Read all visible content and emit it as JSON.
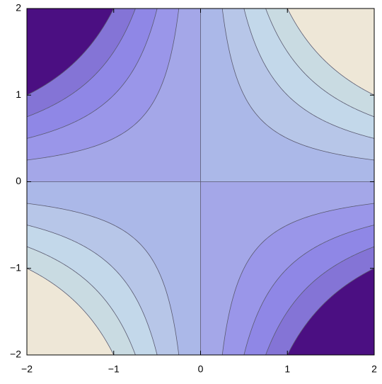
{
  "chart_data": {
    "type": "contour",
    "levels": [
      -2,
      -1.5,
      -1,
      -0.5,
      0,
      0.5,
      1,
      1.5,
      2
    ],
    "colors": [
      "#4b0f82",
      "#8474d6",
      "#8f87e6",
      "#9a96e9",
      "#a4a7e8",
      "#abb8e8",
      "#b7c6e8",
      "#c3d8ea",
      "#c9dbe2",
      "#eee7d7"
    ],
    "line_color": "#5a5a70",
    "xlim": [
      -2,
      2
    ],
    "ylim": [
      -2,
      2
    ],
    "xticks": [
      {
        "value": -2,
        "label": "−2"
      },
      {
        "value": -1,
        "label": "−1"
      },
      0,
      1,
      2
    ],
    "yticks": [
      {
        "value": -2,
        "label": "−2"
      },
      {
        "value": -1,
        "label": "−1"
      },
      0,
      1,
      2
    ]
  }
}
